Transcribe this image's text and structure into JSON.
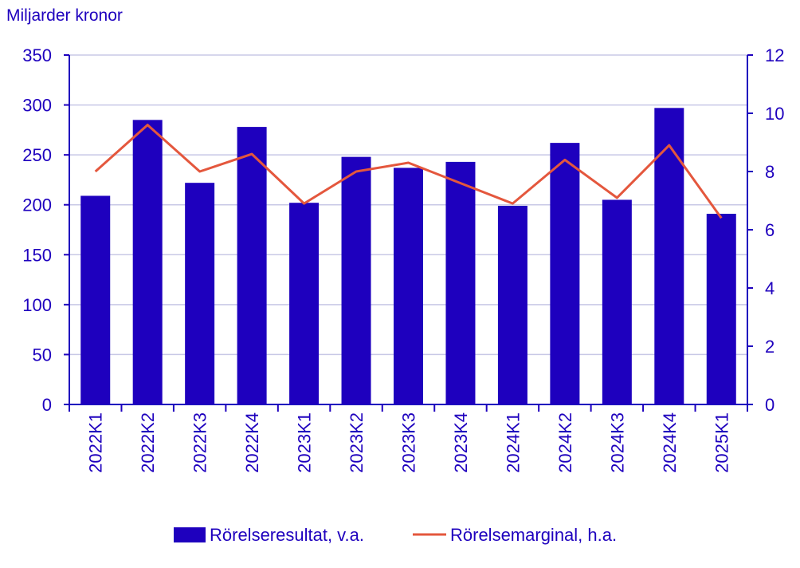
{
  "chart_data": {
    "type": "bar",
    "unit_label": "Miljarder kronor",
    "categories": [
      "2022K1",
      "2022K2",
      "2022K3",
      "2022K4",
      "2023K1",
      "2023K2",
      "2023K3",
      "2023K4",
      "2024K1",
      "2024K2",
      "2024K3",
      "2024K4",
      "2025K1"
    ],
    "series": [
      {
        "name": "Rörelseresultat, v.a.",
        "type": "bar",
        "axis": "left",
        "color": "#1e00be",
        "values": [
          209,
          285,
          222,
          278,
          202,
          248,
          237,
          243,
          199,
          262,
          205,
          297,
          191
        ]
      },
      {
        "name": "Rörelsemarginal, h.a.",
        "type": "line",
        "axis": "right",
        "color": "#e4573d",
        "values": [
          8.0,
          9.6,
          8.0,
          8.6,
          6.9,
          8.0,
          8.3,
          7.6,
          6.9,
          8.4,
          7.1,
          8.9,
          6.4
        ]
      }
    ],
    "y_left": {
      "min": 0,
      "max": 350,
      "ticks": [
        0,
        50,
        100,
        150,
        200,
        250,
        300,
        350
      ]
    },
    "y_right": {
      "min": 0,
      "max": 12,
      "ticks": [
        0,
        2,
        4,
        6,
        8,
        10,
        12
      ]
    },
    "grid": true,
    "legend_position": "bottom",
    "text_color": "#1e00be",
    "grid_color": "#c8c8e6"
  }
}
